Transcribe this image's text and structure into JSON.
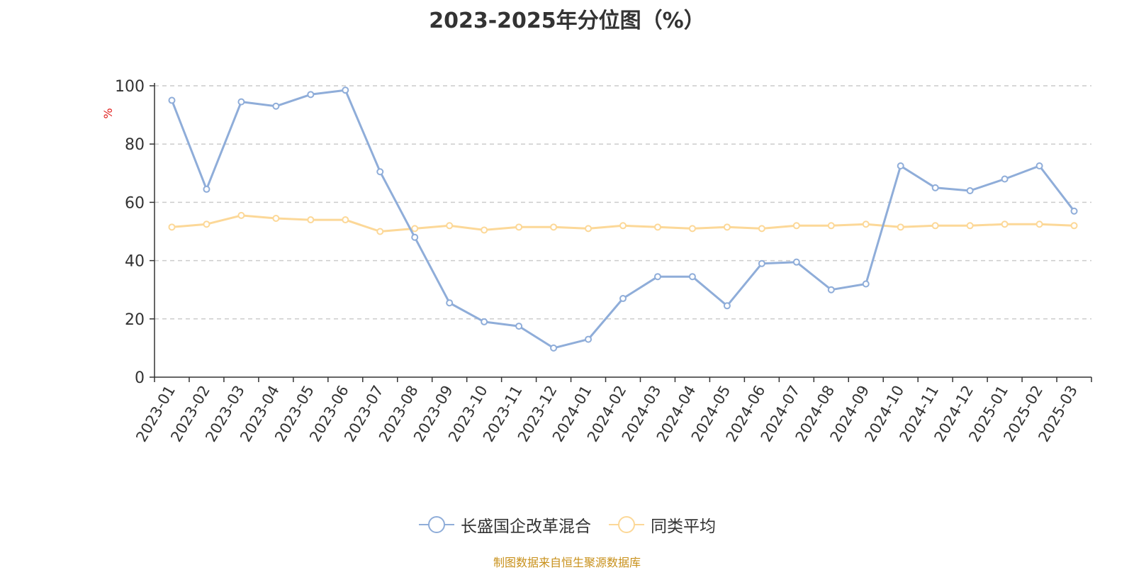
{
  "chart_data": {
    "type": "line",
    "title": "2023-2025年分位图（%）",
    "ylabel": "%",
    "xlabel": "",
    "ylim": [
      0,
      100
    ],
    "yticks": [
      0,
      20,
      40,
      60,
      80,
      100
    ],
    "grid": "horizontal-dashed",
    "legend_position": "bottom-center",
    "categories": [
      "2023-01",
      "2023-02",
      "2023-03",
      "2023-04",
      "2023-05",
      "2023-06",
      "2023-07",
      "2023-08",
      "2023-09",
      "2023-10",
      "2023-11",
      "2023-12",
      "2024-01",
      "2024-02",
      "2024-03",
      "2024-04",
      "2024-05",
      "2024-06",
      "2024-07",
      "2024-08",
      "2024-09",
      "2024-10",
      "2024-11",
      "2024-12",
      "2025-01",
      "2025-02",
      "2025-03"
    ],
    "series": [
      {
        "name": "长盛国企改革混合",
        "color": "#8fadd9",
        "values": [
          95,
          64.5,
          94.5,
          93,
          97,
          98.5,
          70.5,
          48,
          25.5,
          19,
          17.5,
          10,
          13,
          27,
          34.5,
          34.5,
          24.5,
          39,
          39.5,
          30,
          32,
          72.5,
          65,
          64,
          68,
          72.5,
          57
        ]
      },
      {
        "name": "同类平均",
        "color": "#fcd898",
        "values": [
          51.5,
          52.5,
          55.5,
          54.5,
          54,
          54,
          50,
          51,
          52,
          50.5,
          51.5,
          51.5,
          51,
          52,
          51.5,
          51,
          51.5,
          51,
          52,
          52,
          52.5,
          51.5,
          52,
          52,
          52.5,
          52.5,
          52
        ]
      }
    ]
  },
  "colors": {
    "axis": "#333333",
    "grid": "#cccccc",
    "ylabel": "#e0201e",
    "source": "#c8901a"
  },
  "source_note": "制图数据来自恒生聚源数据库"
}
